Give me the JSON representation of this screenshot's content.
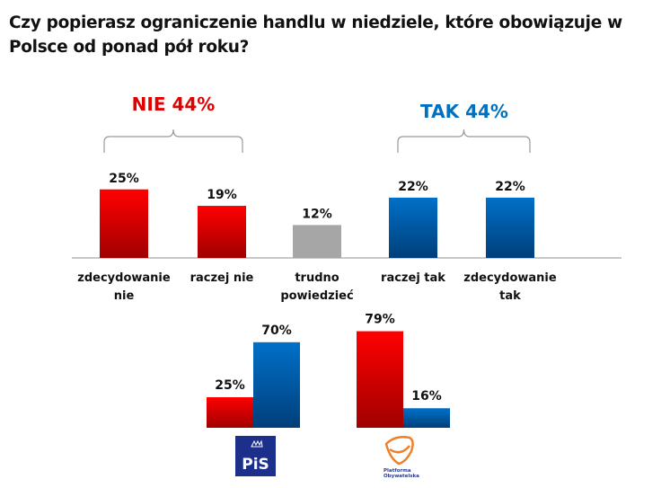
{
  "title": "Czy popierasz ograniczenie handlu w niedziele, które obowiązuje w Polsce od ponad pół roku?",
  "chart_data": [
    {
      "type": "bar",
      "categories": [
        [
          "zdecydowanie",
          "nie"
        ],
        [
          "raczej nie"
        ],
        [
          "trudno",
          "powiedzieć"
        ],
        [
          "raczej tak"
        ],
        [
          "zdecydowanie",
          "tak"
        ]
      ],
      "values": [
        25,
        19,
        12,
        22,
        22
      ],
      "value_labels": [
        "25%",
        "19%",
        "12%",
        "22%",
        "22%"
      ],
      "colors": [
        "#e30000",
        "#e30000",
        "#a6a6a6",
        "#0070c0",
        "#0070c0"
      ],
      "groups": [
        {
          "label": "NIE 44%",
          "color": "#e30000",
          "members": [
            0,
            1
          ]
        },
        {
          "label": "TAK 44%",
          "color": "#0070c0",
          "members": [
            3,
            4
          ]
        }
      ],
      "grid": false
    },
    {
      "type": "bar",
      "categories": [
        "PiS",
        "Platforma Obywatelska"
      ],
      "series": [
        {
          "color": "#e30000",
          "values": [
            25,
            79
          ],
          "value_labels": [
            "25%",
            "79%"
          ]
        },
        {
          "color": "#0070c0",
          "values": [
            70,
            16
          ],
          "value_labels": [
            "70%",
            "16%"
          ]
        }
      ],
      "logos": {
        "pis": "PiS",
        "po": [
          "Platforma",
          "Obywatelska"
        ]
      },
      "grid": false
    }
  ]
}
